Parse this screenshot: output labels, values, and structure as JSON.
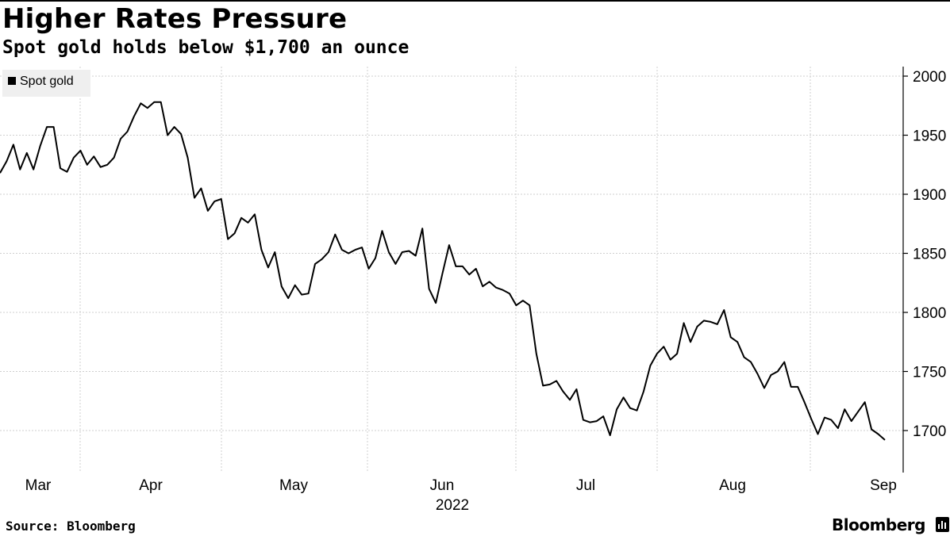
{
  "header": {
    "title": "Higher Rates Pressure",
    "subtitle": "Spot gold holds below $1,700 an ounce"
  },
  "footer": {
    "source": "Source: Bloomberg",
    "brand": "Bloomberg"
  },
  "chart_data": {
    "type": "line",
    "title": "Higher Rates Pressure",
    "subtitle": "Spot gold holds below $1,700 an ounce",
    "xlabel": "",
    "ylabel": "",
    "x_tick_labels": [
      "Mar",
      "Apr",
      "May",
      "Jun",
      "Jul",
      "Aug",
      "Sep"
    ],
    "x_year_label": "2022",
    "y_ticks": [
      1700,
      1750,
      1800,
      1850,
      1900,
      1950,
      2000
    ],
    "ylim": [
      1660,
      2005
    ],
    "grid": true,
    "legend": {
      "placement": "top-left",
      "entries": [
        "Spot gold"
      ]
    },
    "series": [
      {
        "name": "Spot gold",
        "color": "#000000",
        "values": [
          1918,
          1928,
          1942,
          1921,
          1935,
          1921,
          1941,
          1957,
          1957,
          1922,
          1919,
          1931,
          1937,
          1925,
          1932,
          1923,
          1925,
          1931,
          1947,
          1953,
          1966,
          1977,
          1973,
          1978,
          1978,
          1950,
          1957,
          1951,
          1931,
          1897,
          1905,
          1886,
          1894,
          1896,
          1862,
          1867,
          1880,
          1876,
          1883,
          1853,
          1838,
          1851,
          1822,
          1812,
          1823,
          1815,
          1816,
          1841,
          1845,
          1851,
          1866,
          1853,
          1850,
          1853,
          1855,
          1837,
          1846,
          1869,
          1851,
          1841,
          1851,
          1852,
          1848,
          1871,
          1820,
          1808,
          1833,
          1857,
          1839,
          1839,
          1832,
          1837,
          1822,
          1826,
          1821,
          1819,
          1816,
          1806,
          1810,
          1806,
          1765,
          1738,
          1739,
          1742,
          1733,
          1726,
          1735,
          1709,
          1707,
          1708,
          1712,
          1696,
          1718,
          1728,
          1719,
          1717,
          1733,
          1755,
          1765,
          1771,
          1760,
          1765,
          1791,
          1775,
          1788,
          1793,
          1792,
          1790,
          1802,
          1779,
          1775,
          1762,
          1758,
          1748,
          1736,
          1747,
          1750,
          1758,
          1737,
          1737,
          1724,
          1710,
          1697,
          1711,
          1709,
          1702,
          1718,
          1708,
          1716,
          1724,
          1701,
          1697,
          1692
        ]
      }
    ]
  }
}
